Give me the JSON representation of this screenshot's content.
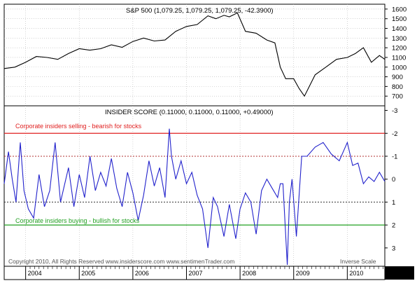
{
  "colors": {
    "sp500_line": "#000000",
    "insider_line": "#2222cc",
    "selling_line": "#e02020",
    "buying_line": "#22a022",
    "selling_text": "#e02020",
    "buying_text": "#22a022",
    "grid": "#b8b8b8",
    "panel_border": "#000000",
    "footer_text": "#555555"
  },
  "chart_data": [
    {
      "type": "line",
      "title": "S&P 500 (1,079.25, 1,079.25, 1,079.25, -42.3900)",
      "ylim": [
        600,
        1650
      ],
      "yticks": [
        700,
        800,
        900,
        1000,
        1100,
        1200,
        1300,
        1400,
        1500,
        1600
      ],
      "grid": true,
      "series": [
        {
          "x": [
            2003.6,
            2003.8,
            2004.0,
            2004.2,
            2004.4,
            2004.6,
            2004.8,
            2005.0,
            2005.2,
            2005.4,
            2005.6,
            2005.8,
            2006.0,
            2006.2,
            2006.4,
            2006.6,
            2006.8,
            2007.0,
            2007.2,
            2007.4,
            2007.55,
            2007.7,
            2007.8,
            2007.95,
            2008.1,
            2008.3,
            2008.5,
            2008.65,
            2008.75,
            2008.85,
            2009.0,
            2009.1,
            2009.2,
            2009.4,
            2009.6,
            2009.8,
            2010.0,
            2010.15,
            2010.3,
            2010.45,
            2010.6,
            2010.7
          ],
          "values": [
            985,
            1000,
            1050,
            1110,
            1100,
            1080,
            1140,
            1190,
            1175,
            1190,
            1230,
            1205,
            1265,
            1300,
            1270,
            1280,
            1370,
            1420,
            1440,
            1530,
            1500,
            1535,
            1520,
            1560,
            1370,
            1350,
            1280,
            1250,
            1000,
            880,
            880,
            780,
            700,
            920,
            1000,
            1080,
            1100,
            1140,
            1200,
            1050,
            1120,
            1080
          ]
        }
      ]
    },
    {
      "type": "line",
      "title": "INSIDER SCORE (0.11000, 0.11000, 0.11000, +0.49000)",
      "ylim": [
        3.8,
        -3.2
      ],
      "yticks": [
        3,
        2,
        1,
        0,
        -1,
        -2,
        -3
      ],
      "scale": "inverse",
      "grid": true,
      "reference_lines": [
        {
          "value": -2,
          "label": "Corporate insiders selling - bearish for stocks"
        },
        {
          "value": 2,
          "label": "Corporate insiders buying - bullish for stocks"
        }
      ],
      "dotted_lines": [
        -1,
        1
      ],
      "series": [
        {
          "x": [
            2003.6,
            2003.68,
            2003.75,
            2003.82,
            2003.9,
            2003.97,
            2004.05,
            2004.15,
            2004.25,
            2004.35,
            2004.45,
            2004.55,
            2004.65,
            2004.72,
            2004.8,
            2004.9,
            2005.0,
            2005.1,
            2005.2,
            2005.3,
            2005.4,
            2005.5,
            2005.6,
            2005.7,
            2005.8,
            2005.9,
            2006.0,
            2006.1,
            2006.2,
            2006.3,
            2006.4,
            2006.5,
            2006.6,
            2006.68,
            2006.72,
            2006.8,
            2006.9,
            2007.0,
            2007.1,
            2007.2,
            2007.3,
            2007.4,
            2007.5,
            2007.58,
            2007.7,
            2007.8,
            2007.92,
            2008.0,
            2008.1,
            2008.2,
            2008.3,
            2008.4,
            2008.5,
            2008.6,
            2008.7,
            2008.75,
            2008.8,
            2008.88,
            2008.92,
            2008.97,
            2009.05,
            2009.15,
            2009.25,
            2009.4,
            2009.55,
            2009.7,
            2009.85,
            2010.0,
            2010.1,
            2010.2,
            2010.3,
            2010.4,
            2010.5,
            2010.6,
            2010.7
          ],
          "values": [
            0.2,
            -1.2,
            0.0,
            1.0,
            -1.6,
            0.5,
            1.3,
            1.7,
            -0.2,
            1.2,
            0.5,
            -1.6,
            1.0,
            0.3,
            -0.5,
            1.2,
            -0.2,
            0.8,
            -1.0,
            0.5,
            -0.3,
            0.3,
            -0.9,
            0.4,
            1.2,
            -0.3,
            0.6,
            1.8,
            0.7,
            -0.8,
            0.3,
            -0.5,
            0.8,
            -2.2,
            -1.0,
            0.0,
            -0.8,
            0.2,
            -0.3,
            0.7,
            1.3,
            3.0,
            0.8,
            1.2,
            2.5,
            1.1,
            2.6,
            1.3,
            0.6,
            1.0,
            2.4,
            0.5,
            0.0,
            0.4,
            0.8,
            0.2,
            0.2,
            3.9,
            1.0,
            0.0,
            2.5,
            -1.0,
            -1.0,
            -1.4,
            -1.6,
            -1.1,
            -0.8,
            -1.6,
            -0.6,
            -0.7,
            0.2,
            -0.1,
            0.1,
            -0.3,
            0.1
          ]
        }
      ]
    }
  ],
  "x_axis": {
    "ticks": [
      "2004",
      "2005",
      "2006",
      "2007",
      "2008",
      "2009",
      "2010"
    ],
    "xlim": [
      2003.6,
      2010.7
    ]
  },
  "footer": {
    "copyright": "Copyright 2010, All Rights Reserved  www.insiderscore.com  www.sentimenTrader.com",
    "scale_note": "Inverse Scale"
  }
}
